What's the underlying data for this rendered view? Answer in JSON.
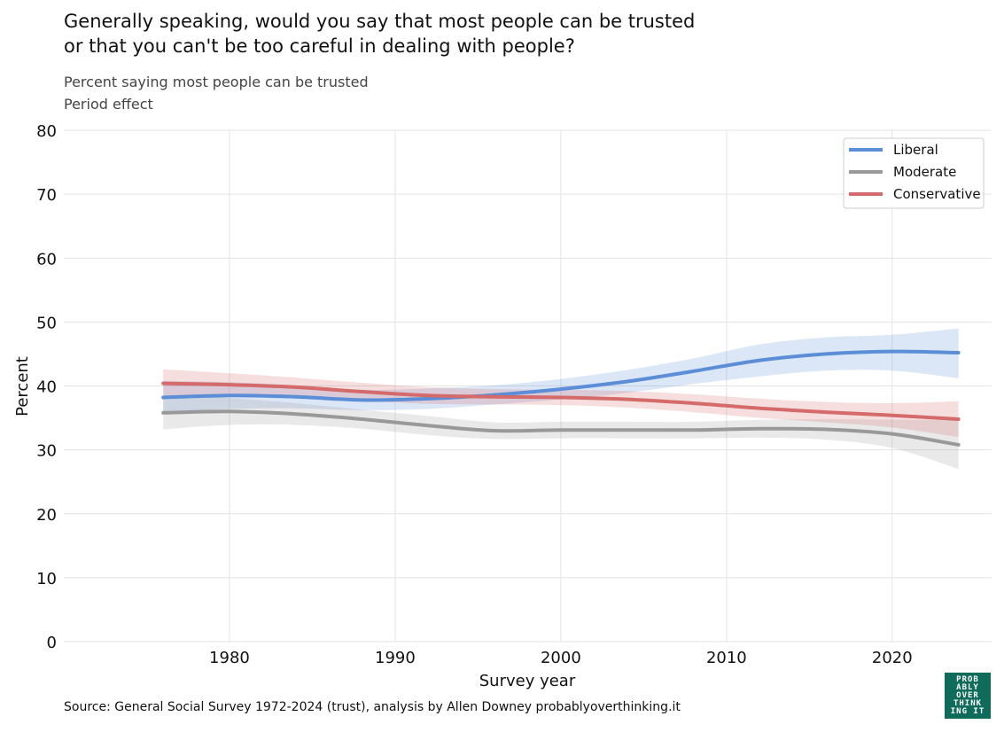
{
  "title_lines": [
    "Generally speaking, would you say that most people can be trusted",
    "or that you can't be too careful in dealing with people?"
  ],
  "subtitle_lines": [
    "Percent saying most people can be trusted",
    "Period effect"
  ],
  "source": "Source: General Social Survey 1972-2024 (trust), analysis by Allen Downey probablyoverthinking.it",
  "logo_lines": [
    "PROB",
    "ABLY",
    "OVER",
    "THINK",
    "ING IT"
  ],
  "logo_color": "#0f6b5a",
  "chart_data": {
    "type": "line",
    "xlabel": "Survey year",
    "ylabel": "Percent",
    "xlim": [
      1970,
      2026
    ],
    "ylim": [
      0,
      80
    ],
    "xticks": [
      1980,
      1990,
      2000,
      2010,
      2020
    ],
    "yticks": [
      0,
      10,
      20,
      30,
      40,
      50,
      60,
      70,
      80
    ],
    "grid": true,
    "legend_position": "top-right",
    "x": [
      1976,
      1980,
      1984,
      1988,
      1992,
      1996,
      2000,
      2004,
      2008,
      2012,
      2016,
      2020,
      2024
    ],
    "series": [
      {
        "name": "Liberal",
        "color": "#5b8ed6",
        "values": [
          38.2,
          38.5,
          38.3,
          37.8,
          38.0,
          38.6,
          39.5,
          40.7,
          42.3,
          44.0,
          45.0,
          45.4,
          45.2
        ],
        "lower": [
          35.6,
          36.4,
          36.5,
          36.2,
          36.4,
          37.1,
          37.9,
          38.9,
          40.3,
          41.5,
          42.4,
          42.4,
          41.2
        ],
        "upper": [
          40.8,
          40.6,
          40.1,
          39.4,
          39.6,
          40.1,
          41.1,
          42.5,
          44.3,
          46.5,
          47.6,
          48.0,
          49.0
        ]
      },
      {
        "name": "Moderate",
        "color": "#999999",
        "values": [
          35.8,
          36.0,
          35.6,
          34.8,
          33.8,
          33.0,
          33.1,
          33.1,
          33.1,
          33.3,
          33.2,
          32.5,
          30.8
        ],
        "lower": [
          33.2,
          33.9,
          33.9,
          33.3,
          32.3,
          31.7,
          31.8,
          31.8,
          31.8,
          31.9,
          31.6,
          30.3,
          27.0
        ],
        "upper": [
          38.4,
          38.1,
          37.3,
          36.3,
          35.3,
          34.3,
          34.4,
          34.4,
          34.4,
          34.7,
          34.8,
          34.7,
          34.6
        ]
      },
      {
        "name": "Conservative",
        "color": "#d46a6a",
        "values": [
          40.4,
          40.2,
          39.8,
          39.1,
          38.5,
          38.3,
          38.2,
          37.9,
          37.3,
          36.5,
          35.9,
          35.4,
          34.8
        ],
        "lower": [
          38.2,
          38.4,
          38.3,
          37.7,
          37.2,
          37.1,
          37.0,
          36.6,
          35.9,
          35.0,
          34.3,
          33.5,
          32.0
        ],
        "upper": [
          42.6,
          42.0,
          41.3,
          40.5,
          39.8,
          39.5,
          39.4,
          39.2,
          38.7,
          38.0,
          37.5,
          37.3,
          37.6
        ]
      }
    ]
  }
}
